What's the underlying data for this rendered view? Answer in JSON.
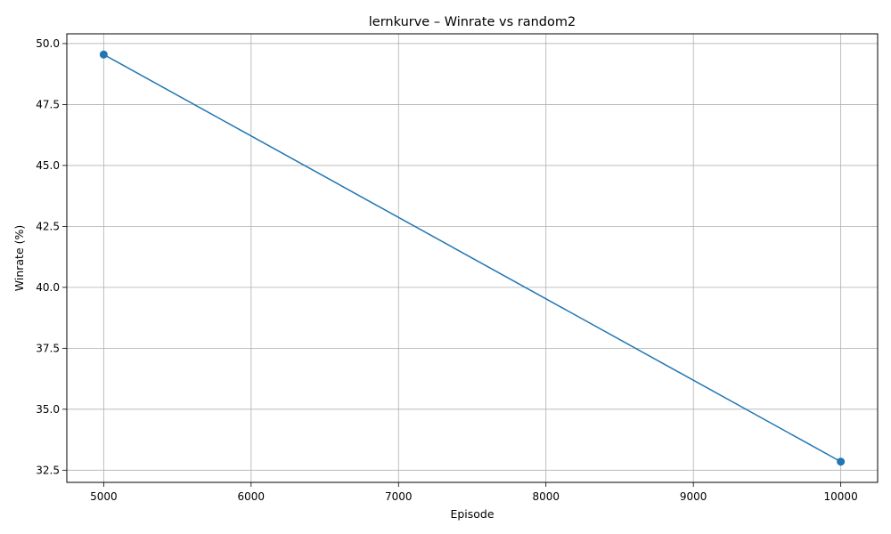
{
  "chart_data": {
    "type": "line",
    "title": "lernkurve – Winrate vs random2",
    "xlabel": "Episode",
    "ylabel": "Winrate (%)",
    "xlim": [
      4750,
      10250
    ],
    "ylim": [
      32.0,
      50.4
    ],
    "xticks": [
      5000,
      6000,
      7000,
      8000,
      9000,
      10000
    ],
    "yticks": [
      32.5,
      35.0,
      37.5,
      40.0,
      42.5,
      45.0,
      47.5,
      50.0
    ],
    "grid": true,
    "series": [
      {
        "color": "#1f77b4",
        "x": [
          5000,
          10000
        ],
        "y": [
          49.55,
          32.85
        ],
        "marker": "circle"
      }
    ]
  }
}
